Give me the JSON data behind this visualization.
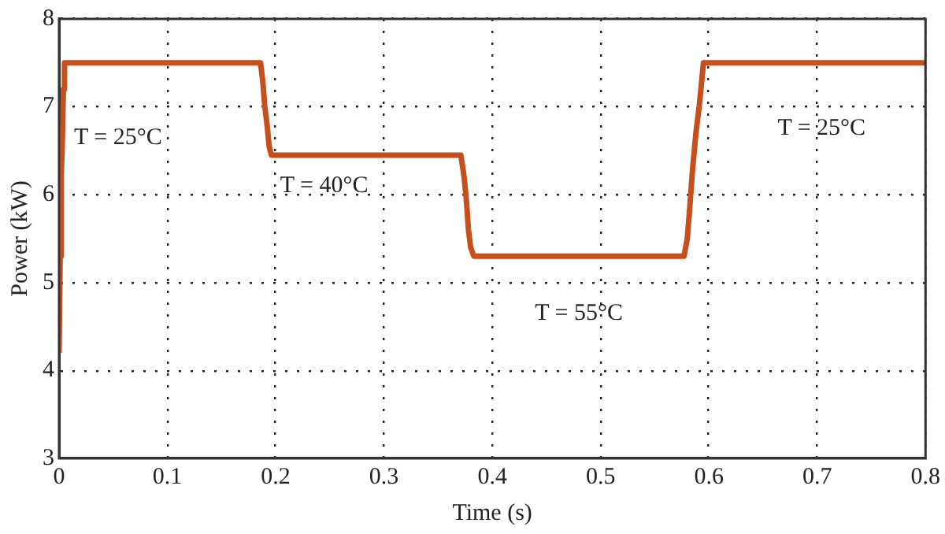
{
  "chart_data": {
    "type": "line",
    "xlabel": "Time (s)",
    "ylabel": "Power (kW)",
    "x": [
      0,
      0.001,
      0.002,
      0.003,
      0.004,
      0.005,
      0.006,
      0.186,
      0.188,
      0.19,
      0.192,
      0.194,
      0.196,
      0.371,
      0.374,
      0.376,
      0.378,
      0.38,
      0.383,
      0.577,
      0.58,
      0.582,
      0.585,
      0.588,
      0.591,
      0.595,
      0.8
    ],
    "series": [
      {
        "color": "#c4501e",
        "values": [
          4.2,
          5.3,
          6.2,
          6.6,
          7.2,
          7.5,
          7.5,
          7.5,
          7.3,
          7.0,
          6.8,
          6.55,
          6.45,
          6.45,
          6.2,
          5.95,
          5.6,
          5.4,
          5.3,
          5.3,
          5.5,
          5.8,
          6.3,
          6.7,
          7.0,
          7.5,
          7.5
        ]
      }
    ],
    "xlim": [
      0,
      0.8
    ],
    "xticks": [
      0,
      0.1,
      0.2,
      0.3,
      0.4,
      0.5,
      0.6,
      0.7,
      0.8
    ],
    "ylim": [
      3,
      8
    ],
    "yticks": [
      3,
      4,
      5,
      6,
      7,
      8
    ],
    "grid": true,
    "line_style": "solid",
    "marker": "none",
    "legend": false,
    "annotations": [
      "T = 25°C",
      "T = 40°C",
      "T = 55°C",
      "T = 25°C"
    ]
  }
}
